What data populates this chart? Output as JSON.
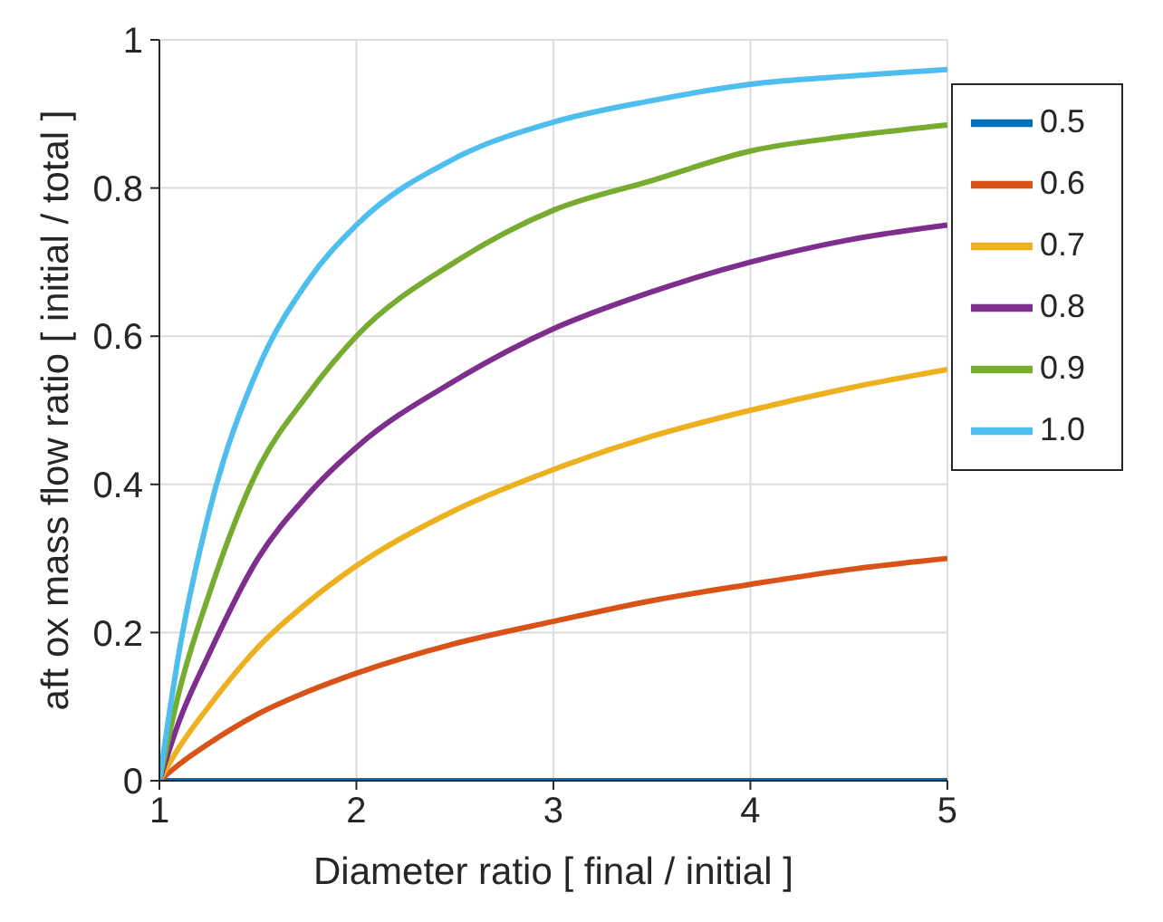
{
  "chart_data": {
    "type": "line",
    "xlabel": "Diameter ratio [ final / initial ]",
    "ylabel": "aft ox mass flow ratio [ initial / total ]",
    "x": [
      1,
      1.1,
      1.25,
      1.5,
      1.75,
      2,
      2.5,
      3,
      3.5,
      4,
      4.5,
      5
    ],
    "series": [
      {
        "name": "0.5",
        "color": "#0072bd",
        "values": [
          0,
          0,
          0,
          0,
          0,
          0,
          0,
          0,
          0,
          0,
          0,
          0
        ]
      },
      {
        "name": "0.6",
        "color": "#d95319",
        "values": [
          0,
          0.022,
          0.05,
          0.09,
          0.12,
          0.145,
          0.185,
          0.215,
          0.243,
          0.265,
          0.285,
          0.3
        ]
      },
      {
        "name": "0.7",
        "color": "#edb120",
        "values": [
          0,
          0.045,
          0.1,
          0.18,
          0.24,
          0.29,
          0.365,
          0.42,
          0.465,
          0.5,
          0.53,
          0.555
        ]
      },
      {
        "name": "0.8",
        "color": "#7e2f8e",
        "values": [
          0,
          0.08,
          0.17,
          0.3,
          0.385,
          0.45,
          0.54,
          0.61,
          0.66,
          0.7,
          0.73,
          0.75
        ]
      },
      {
        "name": "0.9",
        "color": "#77ac30",
        "values": [
          0,
          0.12,
          0.25,
          0.42,
          0.52,
          0.6,
          0.7,
          0.77,
          0.81,
          0.85,
          0.87,
          0.885
        ]
      },
      {
        "name": "1.0",
        "color": "#4dbeee",
        "values": [
          0,
          0.174,
          0.36,
          0.556,
          0.673,
          0.75,
          0.84,
          0.889,
          0.918,
          0.94,
          0.951,
          0.96
        ]
      }
    ],
    "xlim": [
      1,
      5
    ],
    "xticks": [
      1,
      2,
      3,
      4,
      5
    ],
    "ylim": [
      0,
      1
    ],
    "yticks": [
      0,
      0.2,
      0.4,
      0.6,
      0.8,
      1
    ],
    "grid": true,
    "legend": "top right",
    "marker": "none",
    "line_style": "solid"
  }
}
